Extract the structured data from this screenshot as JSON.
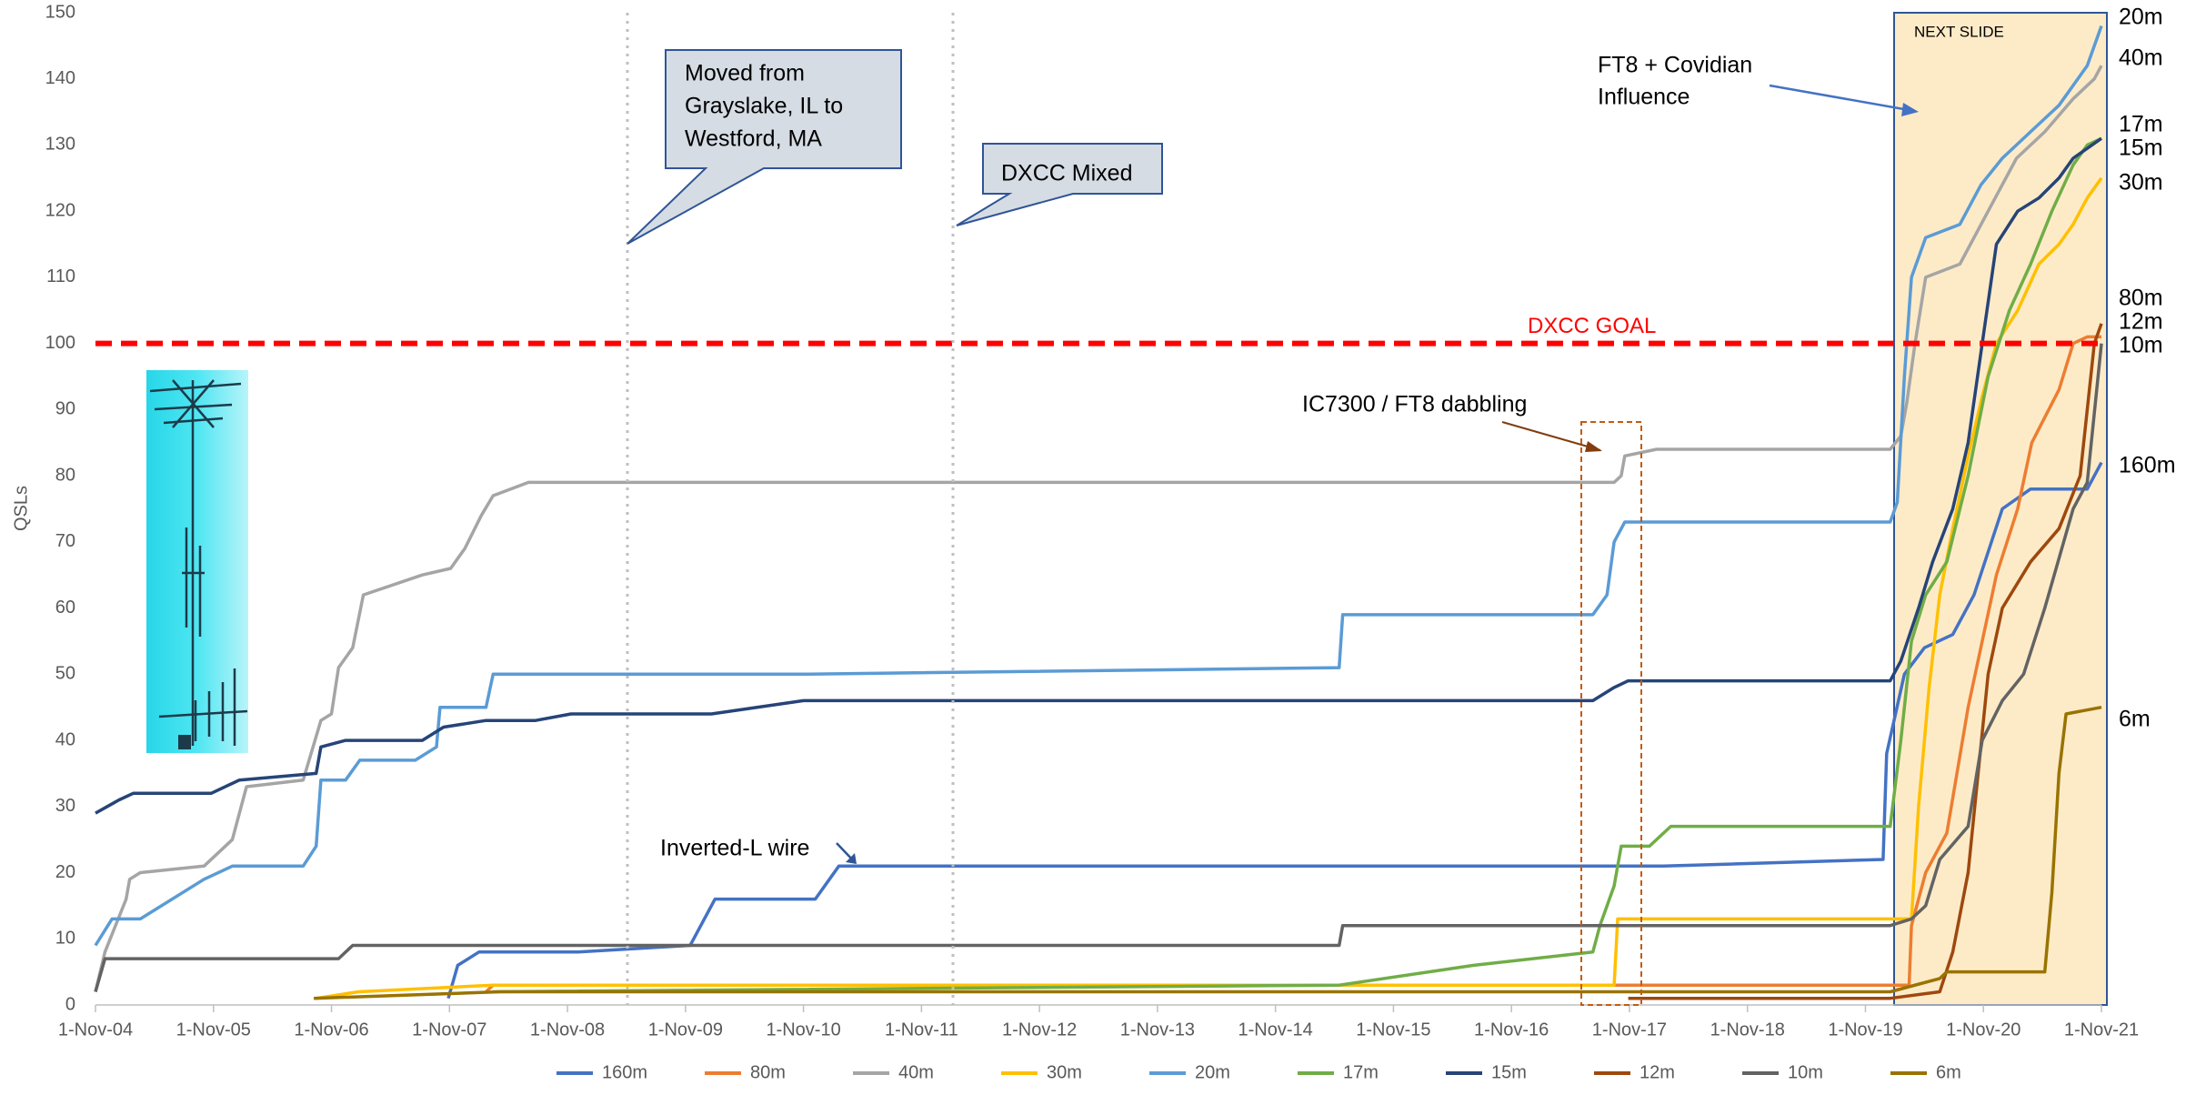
{
  "chart_data": {
    "type": "line",
    "y_label": "QSLs",
    "xlim": [
      2004.83,
      2021.83
    ],
    "xticks": [
      {
        "value": 2004.83,
        "label": "1-Nov-04"
      },
      {
        "value": 2005.83,
        "label": "1-Nov-05"
      },
      {
        "value": 2006.83,
        "label": "1-Nov-06"
      },
      {
        "value": 2007.83,
        "label": "1-Nov-07"
      },
      {
        "value": 2008.83,
        "label": "1-Nov-08"
      },
      {
        "value": 2009.83,
        "label": "1-Nov-09"
      },
      {
        "value": 2010.83,
        "label": "1-Nov-10"
      },
      {
        "value": 2011.83,
        "label": "1-Nov-11"
      },
      {
        "value": 2012.83,
        "label": "1-Nov-12"
      },
      {
        "value": 2013.83,
        "label": "1-Nov-13"
      },
      {
        "value": 2014.83,
        "label": "1-Nov-14"
      },
      {
        "value": 2015.83,
        "label": "1-Nov-15"
      },
      {
        "value": 2016.83,
        "label": "1-Nov-16"
      },
      {
        "value": 2017.83,
        "label": "1-Nov-17"
      },
      {
        "value": 2018.83,
        "label": "1-Nov-18"
      },
      {
        "value": 2019.83,
        "label": "1-Nov-19"
      },
      {
        "value": 2020.83,
        "label": "1-Nov-20"
      },
      {
        "value": 2021.83,
        "label": "1-Nov-21"
      }
    ],
    "ylim": [
      0,
      150
    ],
    "yticks": [
      0,
      10,
      20,
      30,
      40,
      50,
      60,
      70,
      80,
      90,
      100,
      110,
      120,
      130,
      140,
      150
    ],
    "grid": true,
    "goal": {
      "value": 100,
      "label": "DXCC GOAL",
      "color": "#ff0000"
    },
    "annotations": {
      "move": [
        "Moved from",
        "Grayslake, IL to",
        "Westford, MA"
      ],
      "dxcc": "DXCC Mixed",
      "ic7300": "IC7300 / FT8 dabbling",
      "inverted": "Inverted-L wire",
      "ft8": [
        "FT8 + Covidian",
        "Influence"
      ],
      "next": "NEXT SLIDE"
    },
    "series": [
      {
        "name": "160m",
        "color": "#4472c4",
        "x": [
          2007.82,
          2007.9,
          2008.08,
          2008.92,
          2009.87,
          2010.08,
          2010.93,
          2011.13,
          2018.12,
          2019.98,
          2020.01,
          2020.16,
          2020.33,
          2020.57,
          2020.75,
          2020.99,
          2021.23,
          2021.71,
          2021.83
        ],
        "values": [
          1,
          6,
          8,
          8,
          9,
          16,
          16,
          21,
          21,
          22,
          38,
          50,
          54,
          56,
          62,
          75,
          78,
          78,
          82
        ]
      },
      {
        "name": "80m",
        "color": "#ed7d31",
        "x": [
          2008.14,
          2008.2,
          2020.2,
          2020.22,
          2020.34,
          2020.52,
          2020.7,
          2020.82,
          2020.94,
          2021.12,
          2021.24,
          2021.47,
          2021.59,
          2021.71,
          2021.83
        ],
        "values": [
          2,
          3,
          3,
          12,
          20,
          26,
          45,
          55,
          65,
          75,
          85,
          93,
          100,
          101,
          101
        ]
      },
      {
        "name": "40m",
        "color": "#a5a5a5",
        "x": [
          2004.83,
          2004.91,
          2005.09,
          2005.12,
          2005.21,
          2005.75,
          2005.99,
          2006.11,
          2006.59,
          2006.74,
          2006.83,
          2006.89,
          2007.01,
          2007.1,
          2007.6,
          2007.84,
          2007.96,
          2008.1,
          2008.2,
          2008.5,
          2017.7,
          2017.76,
          2017.79,
          2018.06,
          2020.04,
          2020.13,
          2020.18,
          2020.25,
          2020.34,
          2020.63,
          2020.87,
          2021.11,
          2021.35,
          2021.59,
          2021.77,
          2021.83
        ],
        "values": [
          2,
          8,
          16,
          19,
          20,
          21,
          25,
          33,
          34,
          43,
          44,
          51,
          54,
          62,
          65,
          66,
          69,
          74,
          77,
          79,
          79,
          80,
          83,
          84,
          84,
          86,
          91,
          100,
          110,
          112,
          120,
          128,
          132,
          137,
          140,
          142
        ]
      },
      {
        "name": "30m",
        "color": "#ffc000",
        "x": [
          2006.7,
          2007.06,
          2008.2,
          2017.7,
          2017.73,
          2020.22,
          2020.28,
          2020.37,
          2020.46,
          2020.57,
          2020.7,
          2020.82,
          2020.94,
          2021.12,
          2021.3,
          2021.47,
          2021.59,
          2021.71,
          2021.83
        ],
        "values": [
          1,
          2,
          3,
          3,
          13,
          13,
          30,
          48,
          62,
          72,
          83,
          92,
          100,
          105,
          112,
          115,
          118,
          122,
          125
        ]
      },
      {
        "name": "20m",
        "color": "#5b9bd5",
        "x": [
          2004.83,
          2004.97,
          2005.21,
          2005.75,
          2005.99,
          2006.59,
          2006.7,
          2006.74,
          2006.95,
          2007.07,
          2007.54,
          2007.72,
          2007.75,
          2008.14,
          2008.2,
          2010.83,
          2015.37,
          2015.4,
          2017.52,
          2017.64,
          2017.7,
          2017.79,
          2020.04,
          2020.1,
          2020.16,
          2020.22,
          2020.34,
          2020.63,
          2020.81,
          2020.99,
          2021.23,
          2021.47,
          2021.71,
          2021.83
        ],
        "values": [
          9,
          13,
          13,
          19,
          21,
          21,
          24,
          34,
          34,
          37,
          37,
          39,
          45,
          45,
          50,
          50,
          51,
          59,
          59,
          62,
          70,
          73,
          73,
          76,
          95,
          110,
          116,
          118,
          124,
          128,
          132,
          136,
          142,
          148
        ]
      },
      {
        "name": "17m",
        "color": "#70ad47",
        "x": [
          2008.2,
          2015.37,
          2016.51,
          2017.52,
          2017.58,
          2017.7,
          2017.76,
          2018.0,
          2018.18,
          2020.04,
          2020.13,
          2020.22,
          2020.34,
          2020.52,
          2020.7,
          2020.87,
          2021.05,
          2021.23,
          2021.41,
          2021.59,
          2021.71,
          2021.83
        ],
        "values": [
          2,
          3,
          6,
          8,
          12,
          18,
          24,
          24,
          27,
          27,
          40,
          55,
          62,
          67,
          80,
          95,
          105,
          112,
          120,
          127,
          130,
          131
        ]
      },
      {
        "name": "15m",
        "color": "#264478",
        "x": [
          2004.83,
          2005.03,
          2005.15,
          2005.81,
          2006.05,
          2006.7,
          2006.74,
          2006.95,
          2007.6,
          2007.78,
          2008.14,
          2008.56,
          2008.86,
          2010.05,
          2010.83,
          2017.52,
          2017.7,
          2017.82,
          2020.04,
          2020.13,
          2020.28,
          2020.4,
          2020.57,
          2020.7,
          2020.82,
          2020.94,
          2021.12,
          2021.3,
          2021.47,
          2021.59,
          2021.83
        ],
        "values": [
          29,
          31,
          32,
          32,
          34,
          35,
          39,
          40,
          40,
          42,
          43,
          43,
          44,
          44,
          46,
          46,
          48,
          49,
          49,
          52,
          60,
          67,
          75,
          85,
          100,
          115,
          120,
          122,
          125,
          128,
          131
        ]
      },
      {
        "name": "12m",
        "color": "#9e480e",
        "x": [
          2017.82,
          2020.04,
          2020.46,
          2020.57,
          2020.7,
          2020.87,
          2020.99,
          2021.23,
          2021.47,
          2021.65,
          2021.77,
          2021.83
        ],
        "values": [
          1,
          1,
          2,
          8,
          20,
          50,
          60,
          67,
          72,
          80,
          100,
          103
        ]
      },
      {
        "name": "10m",
        "color": "#636363",
        "x": [
          2004.83,
          2004.91,
          2006.89,
          2007.01,
          2015.37,
          2015.4,
          2020.04,
          2020.22,
          2020.34,
          2020.46,
          2020.7,
          2020.82,
          2020.99,
          2021.17,
          2021.35,
          2021.59,
          2021.71,
          2021.83
        ],
        "values": [
          2,
          7,
          7,
          9,
          9,
          12,
          12,
          13,
          15,
          22,
          27,
          40,
          46,
          50,
          60,
          75,
          79,
          100
        ]
      },
      {
        "name": "6m",
        "color": "#997300",
        "x": [
          2006.68,
          2008.26,
          2020.04,
          2020.46,
          2020.52,
          2021.35,
          2021.41,
          2021.47,
          2021.53,
          2021.83
        ],
        "values": [
          1,
          2,
          2,
          4,
          5,
          5,
          17,
          35,
          44,
          45
        ]
      }
    ]
  }
}
